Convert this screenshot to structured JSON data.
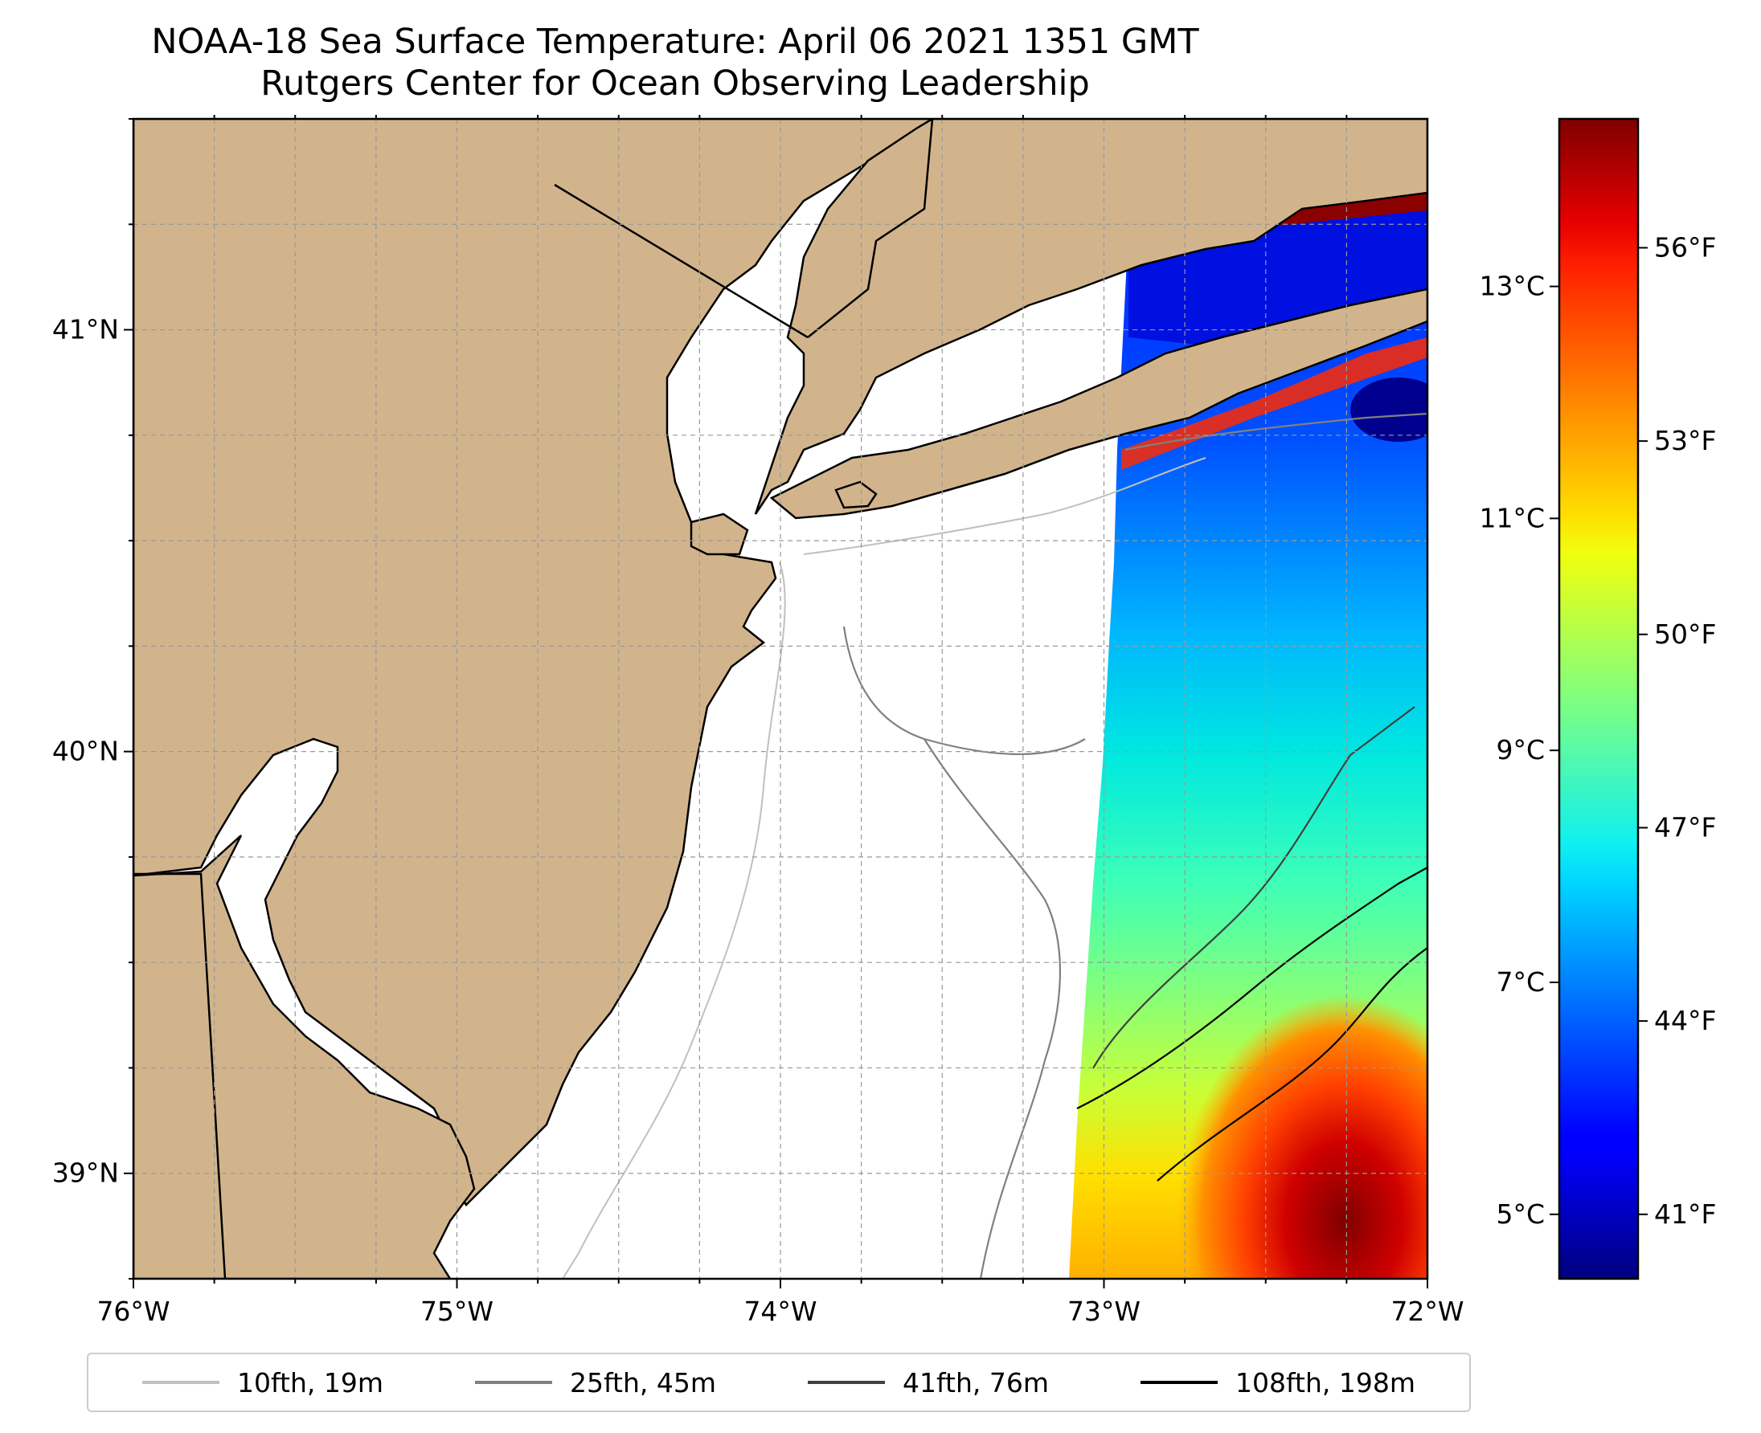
{
  "title": {
    "line1": "NOAA-18 Sea Surface Temperature: April 06 2021 1351 GMT",
    "line2": "Rutgers Center for Ocean Observing Leadership"
  },
  "map": {
    "extent": {
      "lon_min": -76,
      "lon_max": -72,
      "lat_min": 38.75,
      "lat_max": 41.5
    },
    "x_ticks": [
      {
        "lon": -76,
        "label": "76°W"
      },
      {
        "lon": -75,
        "label": "75°W"
      },
      {
        "lon": -74,
        "label": "74°W"
      },
      {
        "lon": -73,
        "label": "73°W"
      },
      {
        "lon": -72,
        "label": "72°W"
      }
    ],
    "y_ticks": [
      {
        "lat": 41,
        "label": "41°N"
      },
      {
        "lat": 40,
        "label": "40°N"
      },
      {
        "lat": 39,
        "label": "39°N"
      }
    ],
    "land_color": "#d2b48c",
    "ocean_color": "#ffffff",
    "gridlines": true
  },
  "colorbar": {
    "colormap": "jet",
    "celsius_ticks": [
      {
        "value": 5,
        "label": "5°C"
      },
      {
        "value": 7,
        "label": "7°C"
      },
      {
        "value": 9,
        "label": "9°C"
      },
      {
        "value": 11,
        "label": "11°C"
      },
      {
        "value": 13,
        "label": "13°C"
      }
    ],
    "fahrenheit_ticks": [
      {
        "value": 41,
        "label": "41°F"
      },
      {
        "value": 44,
        "label": "44°F"
      },
      {
        "value": 47,
        "label": "47°F"
      },
      {
        "value": 50,
        "label": "50°F"
      },
      {
        "value": 53,
        "label": "53°F"
      },
      {
        "value": 56,
        "label": "56°F"
      }
    ],
    "range_f": [
      40,
      58
    ]
  },
  "legend": {
    "items": [
      {
        "label": "10fth, 19m",
        "color": "#c0c0c0"
      },
      {
        "label": "25fth, 45m",
        "color": "#808080"
      },
      {
        "label": "41fth, 76m",
        "color": "#404040"
      },
      {
        "label": "108fth, 198m",
        "color": "#000000"
      }
    ]
  }
}
